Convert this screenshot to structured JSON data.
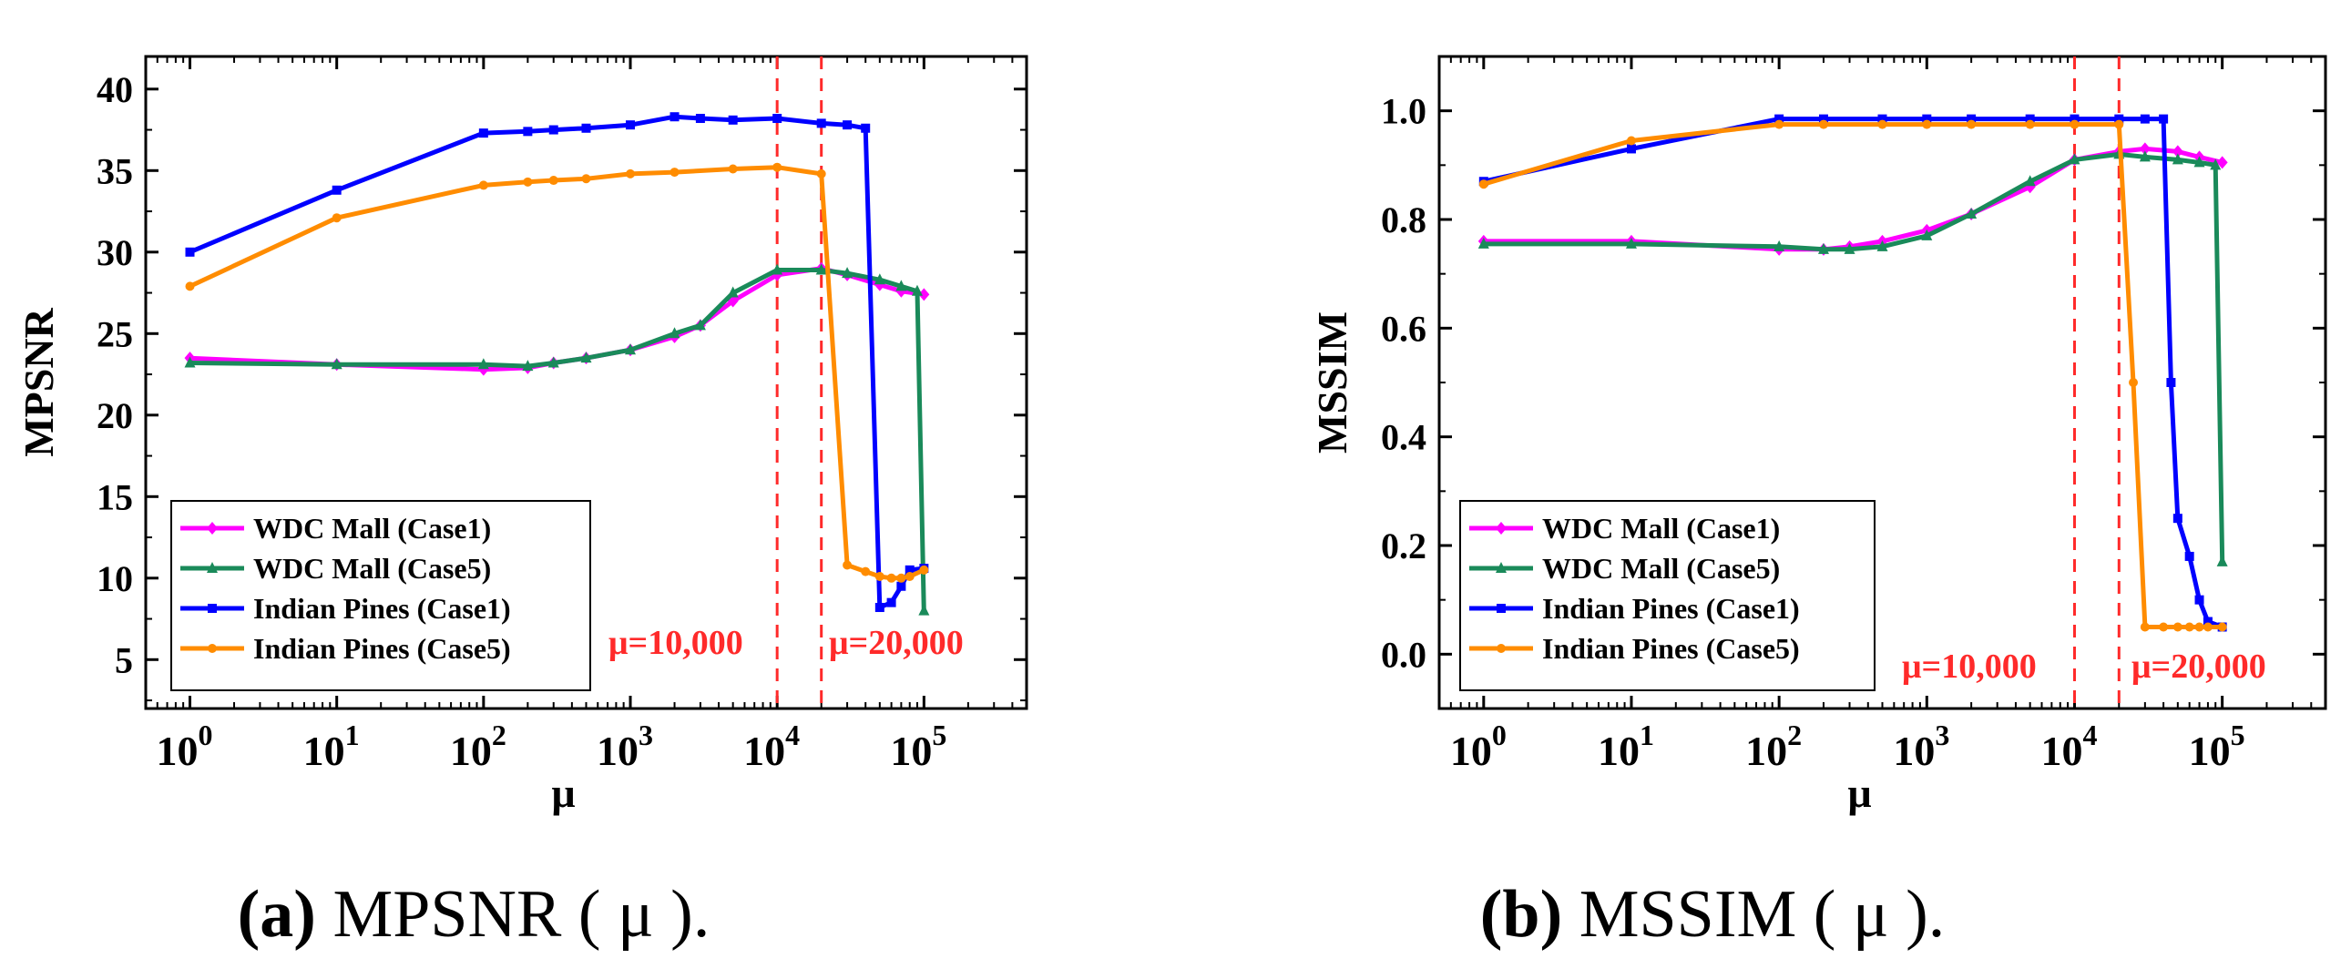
{
  "chart_data": [
    {
      "type": "line",
      "panel": "a",
      "xlabel": "μ",
      "ylabel": "MPSNR",
      "xscale": "log",
      "xlim": [
        0.5,
        500000
      ],
      "ylim": [
        2,
        42
      ],
      "x_ticks": [
        {
          "value": 1,
          "base": "10",
          "exp": "0"
        },
        {
          "value": 10,
          "base": "10",
          "exp": "1"
        },
        {
          "value": 100,
          "base": "10",
          "exp": "2"
        },
        {
          "value": 1000,
          "base": "10",
          "exp": "3"
        },
        {
          "value": 10000,
          "base": "10",
          "exp": "4"
        },
        {
          "value": 100000,
          "base": "10",
          "exp": "5"
        }
      ],
      "y_ticks": [
        {
          "value": 5,
          "label": "5"
        },
        {
          "value": 10,
          "label": "10"
        },
        {
          "value": 15,
          "label": "15"
        },
        {
          "value": 20,
          "label": "20"
        },
        {
          "value": 25,
          "label": "25"
        },
        {
          "value": 30,
          "label": "30"
        },
        {
          "value": 35,
          "label": "35"
        },
        {
          "value": 40,
          "label": "40"
        }
      ],
      "legend_position": "bottom-left",
      "vlines": [
        10000,
        20000
      ],
      "annotations": [
        "μ=10,000",
        "μ=20,000"
      ],
      "series": [
        {
          "name": "WDC Mall (Case1)",
          "color": "#ff00ff",
          "marker": "diamond",
          "x": [
            1,
            10,
            100,
            200,
            300,
            500,
            1000,
            2000,
            3000,
            5000,
            10000,
            20000,
            30000,
            50000,
            70000,
            100000
          ],
          "y": [
            23.5,
            23.1,
            22.8,
            22.9,
            23.2,
            23.5,
            24.0,
            24.8,
            25.5,
            27.0,
            28.6,
            29.0,
            28.6,
            28.0,
            27.6,
            27.4
          ]
        },
        {
          "name": "WDC Mall (Case5)",
          "color": "#1a8a5a",
          "marker": "triangle",
          "x": [
            1,
            10,
            100,
            200,
            300,
            500,
            1000,
            2000,
            3000,
            5000,
            10000,
            20000,
            30000,
            50000,
            70000,
            90000,
            100000
          ],
          "y": [
            23.2,
            23.1,
            23.1,
            23.0,
            23.2,
            23.5,
            24.0,
            25.0,
            25.5,
            27.5,
            28.9,
            28.9,
            28.7,
            28.3,
            27.9,
            27.6,
            8.0
          ]
        },
        {
          "name": "Indian Pines (Case1)",
          "color": "#0000ff",
          "marker": "square",
          "x": [
            1,
            10,
            100,
            200,
            300,
            500,
            1000,
            2000,
            3000,
            5000,
            10000,
            20000,
            30000,
            40000,
            50000,
            60000,
            70000,
            80000,
            100000
          ],
          "y": [
            30.0,
            33.8,
            37.3,
            37.4,
            37.5,
            37.6,
            37.8,
            38.3,
            38.2,
            38.1,
            38.2,
            37.9,
            37.8,
            37.6,
            8.2,
            8.5,
            9.5,
            10.5,
            10.6
          ]
        },
        {
          "name": "Indian Pines (Case5)",
          "color": "#ff8c00",
          "marker": "circle",
          "x": [
            1,
            10,
            100,
            200,
            300,
            500,
            1000,
            2000,
            5000,
            10000,
            20000,
            30000,
            40000,
            50000,
            60000,
            70000,
            80000,
            100000
          ],
          "y": [
            27.9,
            32.1,
            34.1,
            34.3,
            34.4,
            34.5,
            34.8,
            34.9,
            35.1,
            35.2,
            34.8,
            10.8,
            10.4,
            10.1,
            10.0,
            10.0,
            10.1,
            10.5
          ]
        }
      ]
    },
    {
      "type": "line",
      "panel": "b",
      "xlabel": "μ",
      "ylabel": "MSSIM",
      "xscale": "log",
      "xlim": [
        0.5,
        500000
      ],
      "ylim": [
        -0.1,
        1.1
      ],
      "x_ticks": [
        {
          "value": 1,
          "base": "10",
          "exp": "0"
        },
        {
          "value": 10,
          "base": "10",
          "exp": "1"
        },
        {
          "value": 100,
          "base": "10",
          "exp": "2"
        },
        {
          "value": 1000,
          "base": "10",
          "exp": "3"
        },
        {
          "value": 10000,
          "base": "10",
          "exp": "4"
        },
        {
          "value": 100000,
          "base": "10",
          "exp": "5"
        }
      ],
      "y_ticks": [
        {
          "value": 0.0,
          "label": "0.0"
        },
        {
          "value": 0.2,
          "label": "0.2"
        },
        {
          "value": 0.4,
          "label": "0.4"
        },
        {
          "value": 0.6,
          "label": "0.6"
        },
        {
          "value": 0.8,
          "label": "0.8"
        },
        {
          "value": 1.0,
          "label": "1.0"
        }
      ],
      "legend_position": "bottom-left",
      "vlines": [
        10000,
        20000
      ],
      "annotations": [
        "μ=10,000",
        "μ=20,000"
      ],
      "series": [
        {
          "name": "WDC Mall (Case1)",
          "color": "#ff00ff",
          "marker": "diamond",
          "x": [
            1,
            10,
            100,
            200,
            300,
            500,
            1000,
            2000,
            5000,
            10000,
            20000,
            30000,
            50000,
            70000,
            100000
          ],
          "y": [
            0.76,
            0.76,
            0.745,
            0.745,
            0.75,
            0.76,
            0.78,
            0.81,
            0.86,
            0.91,
            0.925,
            0.93,
            0.925,
            0.915,
            0.905
          ]
        },
        {
          "name": "WDC Mall (Case5)",
          "color": "#1a8a5a",
          "marker": "triangle",
          "x": [
            1,
            10,
            100,
            200,
            300,
            500,
            1000,
            2000,
            5000,
            10000,
            20000,
            30000,
            50000,
            70000,
            90000,
            100000
          ],
          "y": [
            0.755,
            0.755,
            0.75,
            0.745,
            0.745,
            0.75,
            0.77,
            0.81,
            0.87,
            0.91,
            0.92,
            0.915,
            0.91,
            0.905,
            0.9,
            0.17
          ]
        },
        {
          "name": "Indian Pines (Case1)",
          "color": "#0000ff",
          "marker": "square",
          "x": [
            1,
            10,
            100,
            200,
            500,
            1000,
            2000,
            5000,
            10000,
            20000,
            30000,
            40000,
            45000,
            50000,
            60000,
            70000,
            80000,
            100000
          ],
          "y": [
            0.87,
            0.93,
            0.985,
            0.985,
            0.985,
            0.985,
            0.985,
            0.985,
            0.985,
            0.985,
            0.985,
            0.985,
            0.5,
            0.25,
            0.18,
            0.1,
            0.06,
            0.05
          ]
        },
        {
          "name": "Indian Pines (Case5)",
          "color": "#ff8c00",
          "marker": "circle",
          "x": [
            1,
            10,
            100,
            200,
            500,
            1000,
            2000,
            5000,
            10000,
            20000,
            25000,
            30000,
            40000,
            50000,
            60000,
            70000,
            80000,
            100000
          ],
          "y": [
            0.865,
            0.945,
            0.975,
            0.975,
            0.975,
            0.975,
            0.975,
            0.975,
            0.975,
            0.975,
            0.5,
            0.05,
            0.05,
            0.05,
            0.05,
            0.05,
            0.05,
            0.05
          ]
        }
      ]
    }
  ],
  "captions": [
    {
      "letter": "(a)",
      "text": " MPSNR ( μ )."
    },
    {
      "letter": "(b)",
      "text": " MSSIM ( μ )."
    }
  ]
}
